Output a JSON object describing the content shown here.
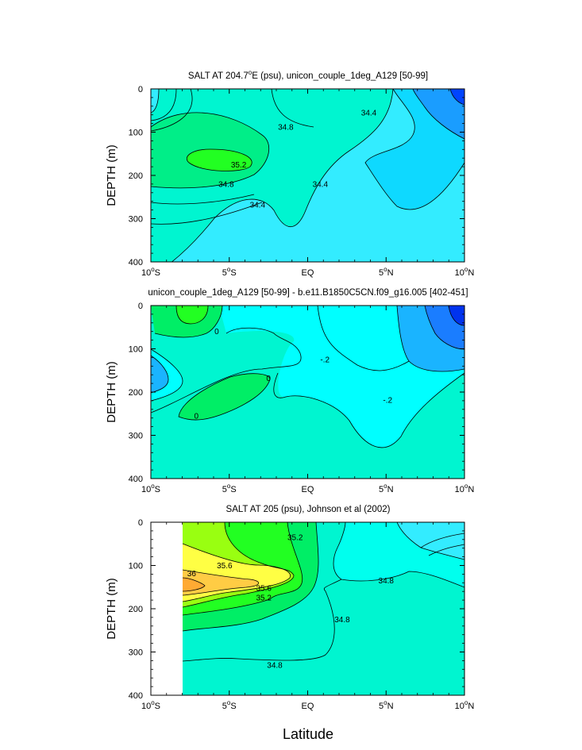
{
  "chart_data": [
    {
      "type": "contour",
      "title": "SALT AT 204.7°E (psu), unicon_couple_1deg_A129 [50-99]",
      "title_parts": [
        "SALT AT 204.7",
        "o",
        "E (psu), unicon_couple_1deg_A129 [50-99]"
      ],
      "xlabel": "",
      "ylabel": "DEPTH (m)",
      "xlim": [
        -10,
        10
      ],
      "ylim": [
        0,
        400
      ],
      "y_inverted": true,
      "x_ticks": [
        -10,
        -5,
        0,
        5,
        10
      ],
      "y_ticks": [
        0,
        100,
        200,
        300,
        400
      ],
      "y_tick_labels": [
        "0",
        "100",
        "200",
        "300",
        "400"
      ],
      "levels": [
        34.0,
        34.4,
        34.8,
        35.2
      ],
      "contour_labels": [
        {
          "text": "34.8",
          "x": -1.4,
          "depth": 88
        },
        {
          "text": "34.4",
          "x": 3.9,
          "depth": 55
        },
        {
          "text": "35.2",
          "x": -4.4,
          "depth": 175
        },
        {
          "text": "34.8",
          "x": -5.2,
          "depth": 220
        },
        {
          "text": "34.4",
          "x": 0.8,
          "depth": 220
        },
        {
          "text": "34.4",
          "x": -3.2,
          "depth": 268
        }
      ],
      "colors": {
        "v33_6": "#0044ff",
        "v34_0": "#1a9dff",
        "v34_2": "#0ed9ff",
        "v34_4": "#33ecff",
        "v34_8": "#00f5d0",
        "v35_0": "#00ee88",
        "v35_2": "#22ff22"
      }
    },
    {
      "type": "contour",
      "title": "unicon_couple_1deg_A129 [50-99] - b.e11.B1850C5CN.f09_g16.005 [402-451]",
      "xlabel": "",
      "ylabel": "DEPTH (m)",
      "xlim": [
        -10,
        10
      ],
      "ylim": [
        0,
        400
      ],
      "y_inverted": true,
      "x_ticks": [
        -10,
        -5,
        0,
        5,
        10
      ],
      "y_ticks": [
        0,
        100,
        200,
        300,
        400
      ],
      "y_tick_labels": [
        "0",
        "100",
        "200",
        "300",
        "400"
      ],
      "levels": [
        -0.6,
        -0.4,
        -0.2,
        0.0,
        0.2
      ],
      "contour_labels": [
        {
          "text": "0",
          "x": -5.8,
          "depth": 60
        },
        {
          "text": "-.2",
          "x": 1.1,
          "depth": 125
        },
        {
          "text": "0",
          "x": -2.5,
          "depth": 168
        },
        {
          "text": "-.2",
          "x": 5.1,
          "depth": 218
        },
        {
          "text": "0",
          "x": -7.1,
          "depth": 255
        }
      ],
      "colors": {
        "vneg0_8": "#0033ee",
        "vneg0_6": "#1a7dff",
        "vneg0_4": "#1ab4ff",
        "vneg0_2": "#00ffff",
        "v0": "#00f5d0",
        "v0_2": "#00ee66",
        "v0_4": "#22ff22"
      }
    },
    {
      "type": "contour",
      "title": "SALT AT 205 (psu), Johnson et al (2002)",
      "xlabel": "Latitude",
      "ylabel": "DEPTH (m)",
      "xlim": [
        -10,
        10
      ],
      "ylim": [
        0,
        400
      ],
      "y_inverted": true,
      "x_ticks": [
        -10,
        -5,
        0,
        5,
        10
      ],
      "y_ticks": [
        0,
        100,
        200,
        300,
        400
      ],
      "y_tick_labels": [
        "0",
        "100",
        "200",
        "300",
        "400"
      ],
      "data_xmin": -8,
      "levels": [
        34.4,
        34.8,
        35.0,
        35.2,
        35.4,
        35.6,
        35.8,
        36.0
      ],
      "contour_labels": [
        {
          "text": "35.2",
          "x": -0.8,
          "depth": 35
        },
        {
          "text": "35.6",
          "x": -5.3,
          "depth": 100
        },
        {
          "text": "36",
          "x": -7.4,
          "depth": 118
        },
        {
          "text": "35.6",
          "x": -2.8,
          "depth": 152
        },
        {
          "text": "35.2",
          "x": -2.8,
          "depth": 174
        },
        {
          "text": "34.8",
          "x": 5.0,
          "depth": 135
        },
        {
          "text": "34.8",
          "x": 2.2,
          "depth": 225
        },
        {
          "text": "34.8",
          "x": -2.1,
          "depth": 330
        }
      ],
      "colors": {
        "v34_4": "#33ecff",
        "v34_6": "#00ffee",
        "v34_8": "#00f5d0",
        "v35_0": "#00ee66",
        "v35_2": "#22ff22",
        "v35_4": "#99ff11",
        "v35_6": "#ffff44",
        "v35_8": "#ffcc44",
        "v36": "#ffaa33"
      }
    }
  ],
  "x_tick_labels": [
    {
      "num": "10",
      "sup": "o",
      "hem": "S"
    },
    {
      "num": "5",
      "sup": "o",
      "hem": "S"
    },
    {
      "num": "EQ",
      "sup": "",
      "hem": ""
    },
    {
      "num": "5",
      "sup": "o",
      "hem": "N"
    },
    {
      "num": "10",
      "sup": "o",
      "hem": "N"
    }
  ]
}
